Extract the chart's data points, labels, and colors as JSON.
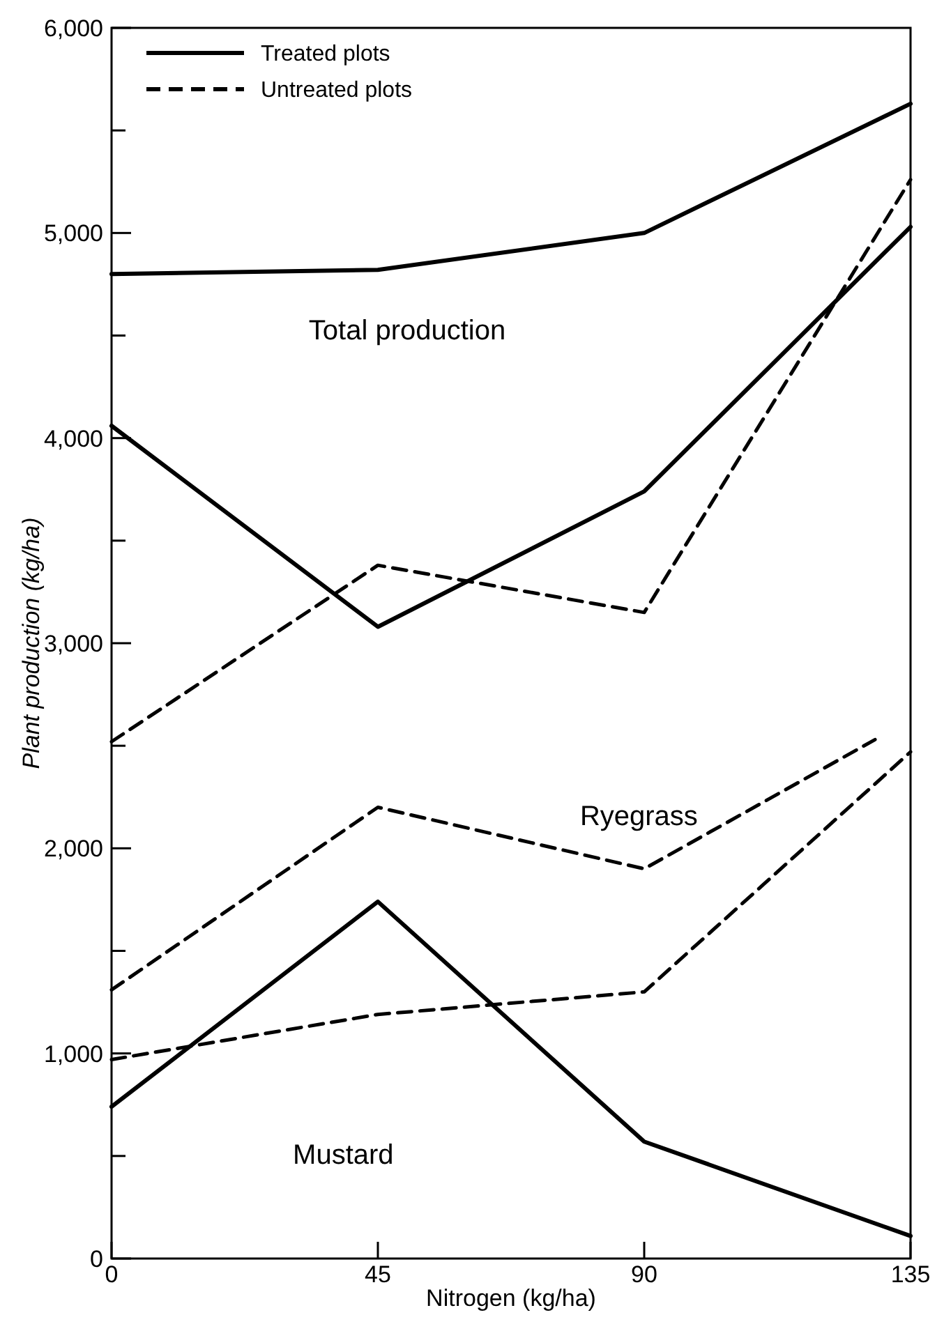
{
  "chart_data": {
    "type": "line",
    "xlabel": "Nitrogen (kg/ha)",
    "ylabel": "Plant production (kg/ha)",
    "xlim": [
      0,
      135
    ],
    "xticks": [
      0,
      45,
      90,
      135
    ],
    "ylim": [
      0,
      6000
    ],
    "yticks": [
      0,
      {
        "value": 500,
        "label": null
      },
      {
        "value": 1000,
        "label": "1,000"
      },
      {
        "value": 1500,
        "label": null
      },
      {
        "value": 2000,
        "label": "2,000"
      },
      {
        "value": 2500,
        "label": null
      },
      {
        "value": 3000,
        "label": "3,000"
      },
      {
        "value": 3500,
        "label": null
      },
      {
        "value": 4000,
        "label": "4,000"
      },
      {
        "value": 4500,
        "label": null
      },
      {
        "value": 5000,
        "label": "5,000"
      },
      {
        "value": 5500,
        "label": null
      },
      {
        "value": 6000,
        "label": "6,000"
      }
    ],
    "grid": false,
    "legend": "top left",
    "marker": "none",
    "series": [
      {
        "name": "Treated plots",
        "color": "#000000",
        "line_style": "solid",
        "x": [
          0,
          45,
          90,
          135
        ],
        "values": [
          4800,
          4820,
          5000,
          5630
        ]
      },
      {
        "name": "Untreated plots",
        "color": "#000000",
        "line_style": "dashed",
        "x": [
          0,
          45,
          90,
          135
        ],
        "values": [
          2520,
          3380,
          3150,
          5260
        ]
      },
      {
        "color": "#000000",
        "line_style": "solid",
        "x": [
          0,
          45,
          90,
          135
        ],
        "values": [
          4060,
          3080,
          3740,
          5030
        ]
      },
      {
        "color": "#000000",
        "line_style": "dashed",
        "x": [
          0,
          45,
          90,
          129
        ],
        "values": [
          1310,
          2200,
          1900,
          2530
        ]
      },
      {
        "color": "#000000",
        "line_style": "solid",
        "x": [
          0,
          45,
          90,
          135
        ],
        "values": [
          740,
          1740,
          570,
          110
        ]
      },
      {
        "color": "#000000",
        "line_style": "dashed",
        "x": [
          0,
          45,
          90,
          135
        ],
        "values": [
          970,
          1190,
          1300,
          2470
        ]
      }
    ],
    "annotations": [
      "Total production",
      "Ryegrass",
      "Mustard"
    ]
  }
}
